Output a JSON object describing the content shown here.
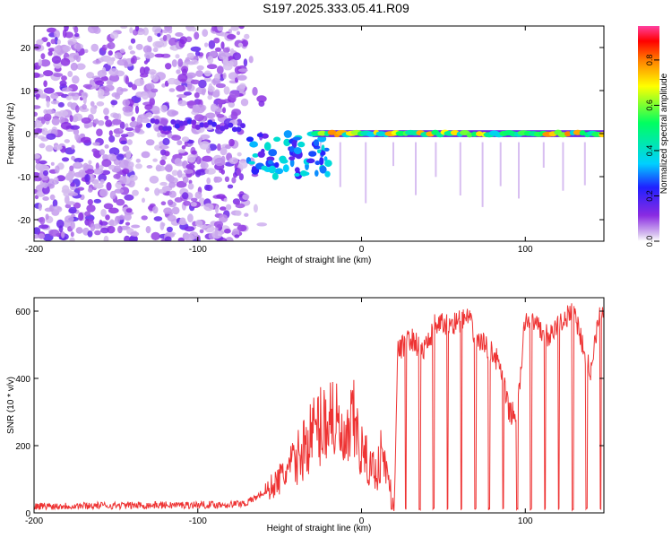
{
  "title": "S197.2025.333.05.41.R09",
  "chart_data": [
    {
      "type": "heatmap",
      "name": "spectrogram",
      "xlabel": "Height of straight line (km)",
      "ylabel": "Frequency (Hz)",
      "xlim": [
        -200,
        148
      ],
      "ylim": [
        -25,
        25
      ],
      "xticks": [
        -200,
        -100,
        0,
        100
      ],
      "xtick_labels": [
        "-200",
        "-100",
        "0",
        "100"
      ],
      "yticks": [
        20,
        10,
        0,
        -10,
        -20
      ],
      "ytick_labels": [
        "20",
        "10",
        "0",
        "-10",
        "-20"
      ],
      "colorbar": {
        "label": "Normalized spectral amplitude",
        "range": [
          0,
          0.95
        ],
        "ticks": [
          0.0,
          0.2,
          0.4,
          0.6,
          0.8
        ],
        "tick_labels": [
          "0.0",
          "0.2",
          "0.4",
          "0.6",
          "0.8"
        ],
        "colormap": [
          "#ffffff",
          "#d9c4f0",
          "#8a2be2",
          "#2020ff",
          "#00d0ff",
          "#00ff60",
          "#ffff00",
          "#ff8000",
          "#ff0000",
          "#ff40a0"
        ]
      },
      "regions": [
        {
          "x_range": [
            -200,
            -70
          ],
          "freq_range": [
            -25,
            25
          ],
          "level": 0.05,
          "description": "broadband noise"
        },
        {
          "x_range": [
            -70,
            -20
          ],
          "freq_center": -5,
          "level": 0.25,
          "description": "scattered energy near -5 Hz"
        },
        {
          "x_range": [
            -30,
            148
          ],
          "freq_center": 0,
          "level": 0.7,
          "description": "narrow ridge at 0 Hz"
        }
      ]
    },
    {
      "type": "line",
      "name": "snr",
      "xlabel": "Height of straight line (km)",
      "ylabel": "SNR (10 * v/v)",
      "xlim": [
        -200,
        148
      ],
      "ylim": [
        0,
        640
      ],
      "xticks": [
        -200,
        -100,
        0,
        100
      ],
      "xtick_labels": [
        "-200",
        "-100",
        "0",
        "100"
      ],
      "yticks": [
        0,
        200,
        400,
        600
      ],
      "ytick_labels": [
        "0",
        "200",
        "400",
        "600"
      ],
      "color": "#ee3333",
      "series": [
        {
          "name": "SNR",
          "x": [
            -200,
            -150,
            -100,
            -80,
            -70,
            -60,
            -50,
            -40,
            -30,
            -22,
            -18,
            -10,
            -5,
            0,
            5,
            10,
            12,
            20,
            22,
            30,
            38,
            45,
            52,
            60,
            65,
            70,
            80,
            85,
            90,
            95,
            100,
            105,
            110,
            115,
            120,
            125,
            130,
            135,
            140,
            145,
            148
          ],
          "y": [
            20,
            22,
            24,
            25,
            30,
            60,
            110,
            170,
            260,
            300,
            330,
            200,
            300,
            200,
            150,
            140,
            200,
            30,
            480,
            520,
            480,
            560,
            560,
            570,
            580,
            520,
            480,
            430,
            300,
            290,
            580,
            560,
            540,
            520,
            560,
            580,
            600,
            500,
            420,
            600,
            610
          ]
        }
      ]
    }
  ]
}
